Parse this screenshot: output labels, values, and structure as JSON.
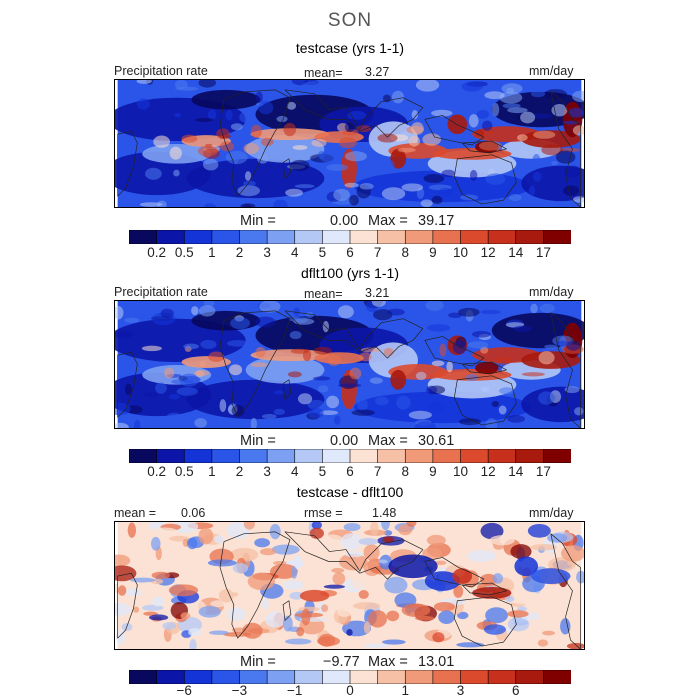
{
  "season": "SON",
  "panels": [
    {
      "title": "testcase (yrs 1-1)",
      "left_label": "Precipitation rate",
      "center_label": "mean=",
      "center_value": "3.27",
      "units": "mm/day",
      "min_label": "Min =",
      "min_value": "0.00",
      "max_label": "Max =",
      "max_value": "39.17",
      "field_mean": 3.27,
      "field_max": 39.17
    },
    {
      "title": "dflt100 (yrs 1-1)",
      "left_label": "Precipitation rate",
      "center_label": "mean=",
      "center_value": "3.21",
      "units": "mm/day",
      "min_label": "Min =",
      "min_value": "0.00",
      "max_label": "Max =",
      "max_value": "30.61",
      "field_mean": 3.21,
      "field_max": 30.61
    },
    {
      "title": "testcase - dflt100",
      "left_label": "mean =",
      "left_value": "0.06",
      "center_label": "rmse =",
      "center_value": "1.48",
      "units": "mm/day",
      "min_label": "Min =",
      "min_value": "−9.77",
      "max_label": "Max =",
      "max_value": "13.01",
      "field_mean": 0.06,
      "field_rmse": 1.48
    }
  ],
  "colorbars": {
    "precip": {
      "colors": [
        "#08085e",
        "#0b16a8",
        "#1434d8",
        "#2a55e8",
        "#4a78ee",
        "#7da0f2",
        "#b4c8f6",
        "#e0e8fb",
        "#fbe2d4",
        "#f6c0a6",
        "#f09a7a",
        "#e8714f",
        "#dc4a2e",
        "#c7301c",
        "#a81a0e",
        "#800000"
      ],
      "ticks": [
        "0.2",
        "0.5",
        "1",
        "2",
        "3",
        "4",
        "5",
        "6",
        "7",
        "8",
        "9",
        "10",
        "12",
        "14",
        "17"
      ]
    },
    "diff": {
      "colors": [
        "#08085e",
        "#0b16a8",
        "#1434d8",
        "#2a55e8",
        "#4a78ee",
        "#7da0f2",
        "#b4c8f6",
        "#e0e8fb",
        "#fbe2d4",
        "#f6c0a6",
        "#f09a7a",
        "#e8714f",
        "#dc4a2e",
        "#c7301c",
        "#a81a0e",
        "#800000"
      ],
      "ticks": [
        {
          "label": "−6",
          "boundary": 2
        },
        {
          "label": "−3",
          "boundary": 4
        },
        {
          "label": "−1",
          "boundary": 6
        },
        {
          "label": "0",
          "boundary": 8
        },
        {
          "label": "1",
          "boundary": 10
        },
        {
          "label": "3",
          "boundary": 12
        },
        {
          "label": "6",
          "boundary": 14
        }
      ]
    }
  }
}
